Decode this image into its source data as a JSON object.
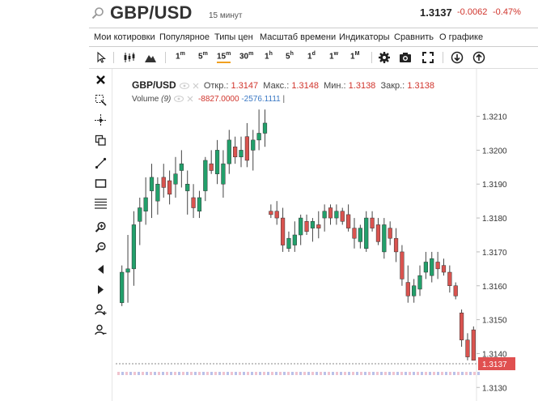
{
  "header": {
    "symbol": "GBP/USD",
    "timeframe": "15 минут",
    "price": "1.3137",
    "change": "-0.0062",
    "change_pct": "-0.47%",
    "accent_negative": "#d0342c"
  },
  "menu": {
    "items": [
      "Мои котировки",
      "Популярное",
      "Типы цен",
      "Масштаб времени",
      "Индикаторы",
      "Сравнить",
      "О графике"
    ]
  },
  "toolbar": {
    "cursor_icon": "cursor-icon",
    "candles_icon": "candles-icon",
    "mountain_icon": "mountain-icon",
    "intervals": [
      {
        "num": "1",
        "unit": "m"
      },
      {
        "num": "5",
        "unit": "m"
      },
      {
        "num": "15",
        "unit": "m",
        "selected": true
      },
      {
        "num": "30",
        "unit": "m"
      },
      {
        "num": "1",
        "unit": "h"
      },
      {
        "num": "5",
        "unit": "h"
      },
      {
        "num": "1",
        "unit": "d"
      },
      {
        "num": "1",
        "unit": "w"
      },
      {
        "num": "1",
        "unit": "M"
      }
    ],
    "right_icons": [
      "settings-icon",
      "camera-icon",
      "fullscreen-icon",
      "download-icon",
      "upload-icon"
    ]
  },
  "tools": [
    "close-icon",
    "zoom-select-icon",
    "crosshair-icon",
    "copy-icon",
    "trendline-icon",
    "rectangle-icon",
    "fibonacci-icon",
    "zoom-in-icon",
    "zoom-out-icon",
    "arrow-left-icon",
    "arrow-right-icon",
    "user-add-icon",
    "user-remove-icon"
  ],
  "legend": {
    "name": "GBP/USD",
    "open_label": "Откр.:",
    "open": "1.3147",
    "high_label": "Макс.:",
    "high": "1.3148",
    "low_label": "Мин.:",
    "low": "1.3138",
    "close_label": "Закр.:",
    "close": "1.3138",
    "volume_label": "Volume",
    "volume_period": "(9)",
    "volume_value_1": "-8827.0000",
    "volume_value_2": "-2576.1111"
  },
  "chart_data": {
    "type": "candlestick",
    "ylim": [
      1.3126,
      1.3224
    ],
    "y_ticks": [
      "1.3130",
      "1.3140",
      "1.3150",
      "1.3160",
      "1.3170",
      "1.3180",
      "1.3190",
      "1.3200",
      "1.3210"
    ],
    "last_price": "1.3137",
    "colors": {
      "up": "#22a06b",
      "down": "#d9534f",
      "last_price_bg": "#e05050"
    },
    "candles": [
      {
        "o": 1.3155,
        "h": 1.3166,
        "l": 1.3154,
        "c": 1.3164
      },
      {
        "o": 1.3164,
        "h": 1.3175,
        "l": 1.3155,
        "c": 1.3165
      },
      {
        "o": 1.3165,
        "h": 1.3182,
        "l": 1.316,
        "c": 1.3178
      },
      {
        "o": 1.3179,
        "h": 1.3186,
        "l": 1.3172,
        "c": 1.3183
      },
      {
        "o": 1.3182,
        "h": 1.3192,
        "l": 1.3178,
        "c": 1.3186
      },
      {
        "o": 1.3188,
        "h": 1.3196,
        "l": 1.318,
        "c": 1.3192
      },
      {
        "o": 1.3185,
        "h": 1.3192,
        "l": 1.3181,
        "c": 1.319
      },
      {
        "o": 1.3192,
        "h": 1.3196,
        "l": 1.3186,
        "c": 1.3189
      },
      {
        "o": 1.3191,
        "h": 1.3194,
        "l": 1.3184,
        "c": 1.3187
      },
      {
        "o": 1.319,
        "h": 1.3198,
        "l": 1.3186,
        "c": 1.3193
      },
      {
        "o": 1.3194,
        "h": 1.32,
        "l": 1.3189,
        "c": 1.3196
      },
      {
        "o": 1.3188,
        "h": 1.3194,
        "l": 1.3181,
        "c": 1.319
      },
      {
        "o": 1.3186,
        "h": 1.319,
        "l": 1.318,
        "c": 1.3183
      },
      {
        "o": 1.3182,
        "h": 1.3188,
        "l": 1.318,
        "c": 1.3186
      },
      {
        "o": 1.3188,
        "h": 1.3198,
        "l": 1.3185,
        "c": 1.3197
      },
      {
        "o": 1.3196,
        "h": 1.32,
        "l": 1.3193,
        "c": 1.3194
      },
      {
        "o": 1.3193,
        "h": 1.3203,
        "l": 1.319,
        "c": 1.32
      },
      {
        "o": 1.319,
        "h": 1.32,
        "l": 1.3186,
        "c": 1.3196
      },
      {
        "o": 1.3196,
        "h": 1.3206,
        "l": 1.3193,
        "c": 1.3203
      },
      {
        "o": 1.3201,
        "h": 1.3204,
        "l": 1.3196,
        "c": 1.3198
      },
      {
        "o": 1.3198,
        "h": 1.3204,
        "l": 1.3195,
        "c": 1.32
      },
      {
        "o": 1.3204,
        "h": 1.3208,
        "l": 1.3195,
        "c": 1.3197
      },
      {
        "o": 1.32,
        "h": 1.3206,
        "l": 1.3194,
        "c": 1.3203
      },
      {
        "o": 1.3203,
        "h": 1.3212,
        "l": 1.32,
        "c": 1.3205
      },
      {
        "o": 1.3205,
        "h": 1.3212,
        "l": 1.3201,
        "c": 1.3208
      },
      {
        "o": 1.3182,
        "h": 1.3184,
        "l": 1.318,
        "c": 1.3181
      },
      {
        "o": 1.3182,
        "h": 1.3185,
        "l": 1.3178,
        "c": 1.318
      },
      {
        "o": 1.318,
        "h": 1.3183,
        "l": 1.317,
        "c": 1.3172
      },
      {
        "o": 1.3171,
        "h": 1.3176,
        "l": 1.317,
        "c": 1.3174
      },
      {
        "o": 1.3172,
        "h": 1.3179,
        "l": 1.317,
        "c": 1.3175
      },
      {
        "o": 1.3175,
        "h": 1.3181,
        "l": 1.3172,
        "c": 1.318
      },
      {
        "o": 1.3179,
        "h": 1.3181,
        "l": 1.3175,
        "c": 1.3176
      },
      {
        "o": 1.3177,
        "h": 1.318,
        "l": 1.3173,
        "c": 1.3179
      },
      {
        "o": 1.3178,
        "h": 1.3182,
        "l": 1.3174,
        "c": 1.3177
      },
      {
        "o": 1.318,
        "h": 1.3184,
        "l": 1.3176,
        "c": 1.3182
      },
      {
        "o": 1.3183,
        "h": 1.3184,
        "l": 1.3178,
        "c": 1.318
      },
      {
        "o": 1.318,
        "h": 1.3184,
        "l": 1.3178,
        "c": 1.3182
      },
      {
        "o": 1.3182,
        "h": 1.3183,
        "l": 1.3178,
        "c": 1.3179
      },
      {
        "o": 1.3181,
        "h": 1.3184,
        "l": 1.3176,
        "c": 1.3177
      },
      {
        "o": 1.3177,
        "h": 1.318,
        "l": 1.3171,
        "c": 1.3174
      },
      {
        "o": 1.3173,
        "h": 1.3178,
        "l": 1.3171,
        "c": 1.3177
      },
      {
        "o": 1.3171,
        "h": 1.3182,
        "l": 1.317,
        "c": 1.318
      },
      {
        "o": 1.318,
        "h": 1.3182,
        "l": 1.3176,
        "c": 1.3177
      },
      {
        "o": 1.3178,
        "h": 1.318,
        "l": 1.3172,
        "c": 1.3173
      },
      {
        "o": 1.317,
        "h": 1.318,
        "l": 1.3168,
        "c": 1.3178
      },
      {
        "o": 1.3177,
        "h": 1.3179,
        "l": 1.3172,
        "c": 1.3174
      },
      {
        "o": 1.3174,
        "h": 1.3177,
        "l": 1.3167,
        "c": 1.317
      },
      {
        "o": 1.317,
        "h": 1.3172,
        "l": 1.316,
        "c": 1.3162
      },
      {
        "o": 1.3161,
        "h": 1.3166,
        "l": 1.3155,
        "c": 1.3157
      },
      {
        "o": 1.3157,
        "h": 1.3162,
        "l": 1.3155,
        "c": 1.316
      },
      {
        "o": 1.3159,
        "h": 1.3166,
        "l": 1.3157,
        "c": 1.3163
      },
      {
        "o": 1.3164,
        "h": 1.317,
        "l": 1.3162,
        "c": 1.3167
      },
      {
        "o": 1.3163,
        "h": 1.317,
        "l": 1.3161,
        "c": 1.3168
      },
      {
        "o": 1.3167,
        "h": 1.317,
        "l": 1.3162,
        "c": 1.3165
      },
      {
        "o": 1.3166,
        "h": 1.3168,
        "l": 1.3163,
        "c": 1.3164
      },
      {
        "o": 1.3164,
        "h": 1.3166,
        "l": 1.3158,
        "c": 1.316
      },
      {
        "o": 1.316,
        "h": 1.3161,
        "l": 1.3156,
        "c": 1.3157
      },
      {
        "o": 1.3152,
        "h": 1.3153,
        "l": 1.3142,
        "c": 1.3144
      },
      {
        "o": 1.3144,
        "h": 1.3146,
        "l": 1.3138,
        "c": 1.3139
      },
      {
        "o": 1.3147,
        "h": 1.3148,
        "l": 1.3138,
        "c": 1.3138
      }
    ]
  }
}
